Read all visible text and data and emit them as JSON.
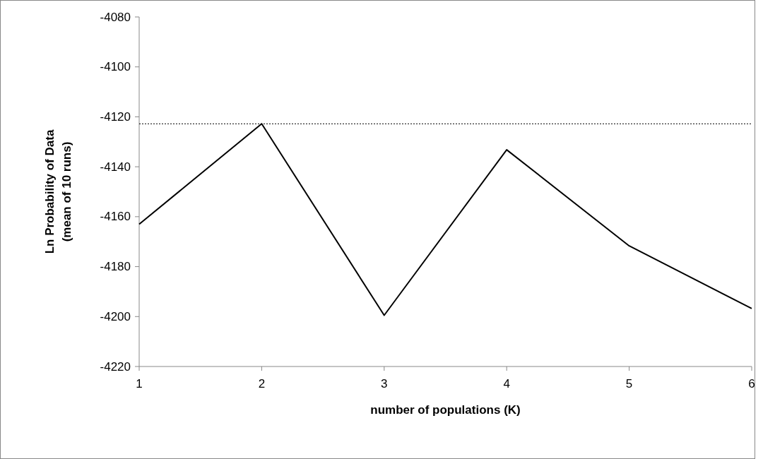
{
  "chart_data": {
    "type": "line",
    "xlabel": "number of populations (K)",
    "ylabel": "Ln Probability of Data\n(mean of 10 runs)",
    "x": [
      1,
      2,
      3,
      4,
      5,
      6
    ],
    "series": [
      {
        "color": "#000000",
        "values": [
          -4163,
          -4122.8,
          -4199.5,
          -4133.2,
          -4171.7,
          -4196.8
        ]
      }
    ],
    "xlim": [
      1,
      6
    ],
    "xticks": [
      1,
      2,
      3,
      4,
      5,
      6
    ],
    "ylim": [
      -4220,
      -4080
    ],
    "yticks": [
      -4220,
      -4200,
      -4180,
      -4160,
      -4140,
      -4120,
      -4100,
      -4080
    ],
    "ref_lines": [
      {
        "axis": "y",
        "value": -4122.8,
        "color": "#000000",
        "line_style": "dotted"
      }
    ],
    "grid": false,
    "marker": "none",
    "line_style": "solid"
  }
}
